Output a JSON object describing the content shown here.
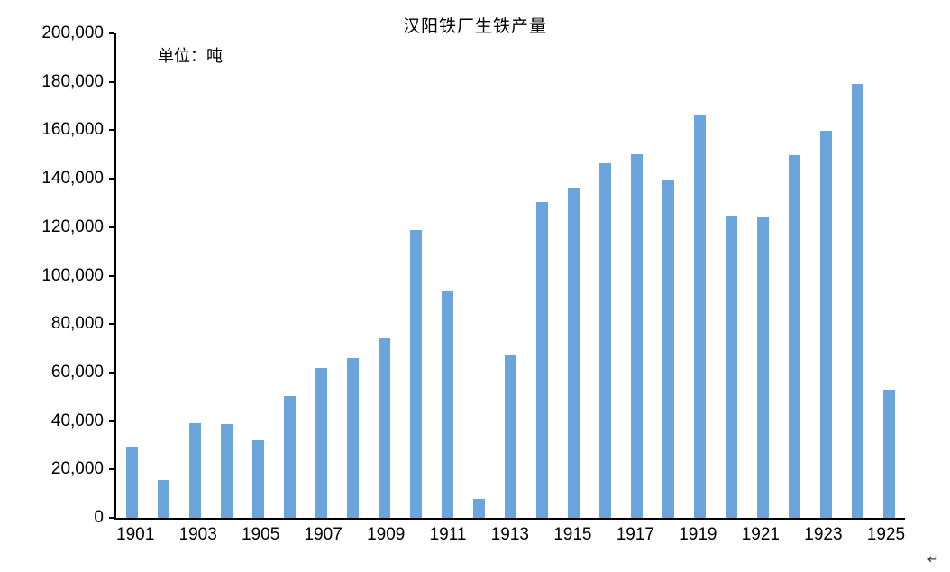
{
  "chart_data": {
    "type": "bar",
    "title": "汉阳铁厂生铁产量",
    "unit_note": "单位：吨",
    "categories": [
      1901,
      1902,
      1903,
      1904,
      1905,
      1906,
      1907,
      1908,
      1909,
      1910,
      1911,
      1912,
      1913,
      1914,
      1915,
      1916,
      1917,
      1918,
      1919,
      1920,
      1921,
      1922,
      1923,
      1924,
      1925
    ],
    "values": [
      29000,
      15500,
      39000,
      38700,
      32000,
      50400,
      62000,
      66000,
      74000,
      119000,
      93500,
      7800,
      67000,
      130500,
      136300,
      146400,
      150000,
      139300,
      166000,
      124800,
      124300,
      149700,
      159800,
      179000,
      53000
    ],
    "xlabel": "",
    "ylabel": "",
    "ylim": [
      0,
      200000
    ],
    "ytick_labels": [
      "0",
      "20,000",
      "40,000",
      "60,000",
      "80,000",
      "100,000",
      "120,000",
      "140,000",
      "160,000",
      "180,000",
      "200,000"
    ],
    "xtick_years": [
      1901,
      1903,
      1905,
      1907,
      1909,
      1911,
      1913,
      1915,
      1917,
      1919,
      1921,
      1923,
      1925
    ],
    "bar_color": "#6BA5DB",
    "grid": false,
    "legend": "none"
  },
  "misc": {
    "return_mark": "↵"
  }
}
